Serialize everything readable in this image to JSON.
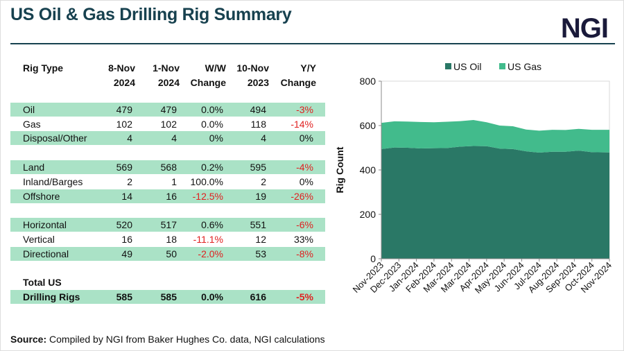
{
  "title": "US Oil & Gas Drilling Rig Summary",
  "logo": "NGI",
  "table": {
    "headers": [
      [
        "",
        "Rig Type"
      ],
      [
        "8-Nov",
        "2024"
      ],
      [
        "1-Nov",
        "2024"
      ],
      [
        "W/W",
        "Change"
      ],
      [
        "10-Nov",
        "2023"
      ],
      [
        "Y/Y",
        "Change"
      ]
    ],
    "rows": [
      {
        "name": "Oil",
        "v": [
          "479",
          "479",
          "0.0%",
          "494",
          "-3%"
        ],
        "shade": true
      },
      {
        "name": "Gas",
        "v": [
          "102",
          "102",
          "0.0%",
          "118",
          "-14%"
        ],
        "shade": false
      },
      {
        "name": "Disposal/Other",
        "v": [
          "4",
          "4",
          "0%",
          "4",
          "0%"
        ],
        "shade": true
      },
      {
        "name": "Land",
        "v": [
          "569",
          "568",
          "0.2%",
          "595",
          "-4%"
        ],
        "shade": true
      },
      {
        "name": "Inland/Barges",
        "v": [
          "2",
          "1",
          "100.0%",
          "2",
          "0%"
        ],
        "shade": false
      },
      {
        "name": "Offshore",
        "v": [
          "14",
          "16",
          "-12.5%",
          "19",
          "-26%"
        ],
        "shade": true
      },
      {
        "name": "Horizontal",
        "v": [
          "520",
          "517",
          "0.6%",
          "551",
          "-6%"
        ],
        "shade": true
      },
      {
        "name": "Vertical",
        "v": [
          "16",
          "18",
          "-11.1%",
          "12",
          "33%"
        ],
        "shade": false
      },
      {
        "name": "Directional",
        "v": [
          "49",
          "50",
          "-2.0%",
          "53",
          "-8%"
        ],
        "shade": true
      },
      {
        "name": "Total US",
        "v": [
          "",
          "",
          "",
          "",
          ""
        ],
        "shade": false,
        "bold": true
      },
      {
        "name": "Drilling Rigs",
        "v": [
          "585",
          "585",
          "0.0%",
          "616",
          "-5%"
        ],
        "shade": true,
        "bold": true
      }
    ]
  },
  "source": {
    "label": "Source:",
    "text": " Compiled by NGI from Baker Hughes Co. data, NGI calculations"
  },
  "chart_data": {
    "type": "area",
    "stacked": true,
    "ylabel": "Rig Count",
    "ylim": [
      0,
      800
    ],
    "yticks": [
      0,
      200,
      400,
      600,
      800
    ],
    "xtick_labels": [
      "Nov-2023",
      "Dec-2023",
      "Jan-2024",
      "Feb-2024",
      "Mar-2024",
      "Mar-2024",
      "Apr-2024",
      "May-2024",
      "Jun-2024",
      "Jul-2024",
      "Aug-2024",
      "Sep-2024",
      "Oct-2024",
      "Nov-2024"
    ],
    "legend": "top",
    "x": [
      "2023-11-10",
      "2023-12-01",
      "2023-12-22",
      "2024-01-12",
      "2024-02-02",
      "2024-02-23",
      "2024-03-15",
      "2024-04-05",
      "2024-04-26",
      "2024-05-17",
      "2024-06-07",
      "2024-06-28",
      "2024-07-19",
      "2024-08-09",
      "2024-08-30",
      "2024-09-20",
      "2024-10-11",
      "2024-11-08"
    ],
    "series": [
      {
        "name": "US Oil",
        "color": "#2a7866",
        "values": [
          494,
          501,
          500,
          497,
          498,
          499,
          505,
          508,
          507,
          496,
          494,
          484,
          478,
          482,
          482,
          487,
          480,
          479
        ]
      },
      {
        "name": "US Gas",
        "color": "#42bb8c",
        "values": [
          118,
          118,
          118,
          119,
          117,
          118,
          115,
          117,
          108,
          104,
          103,
          98,
          99,
          99,
          98,
          98,
          101,
          102
        ]
      }
    ]
  }
}
